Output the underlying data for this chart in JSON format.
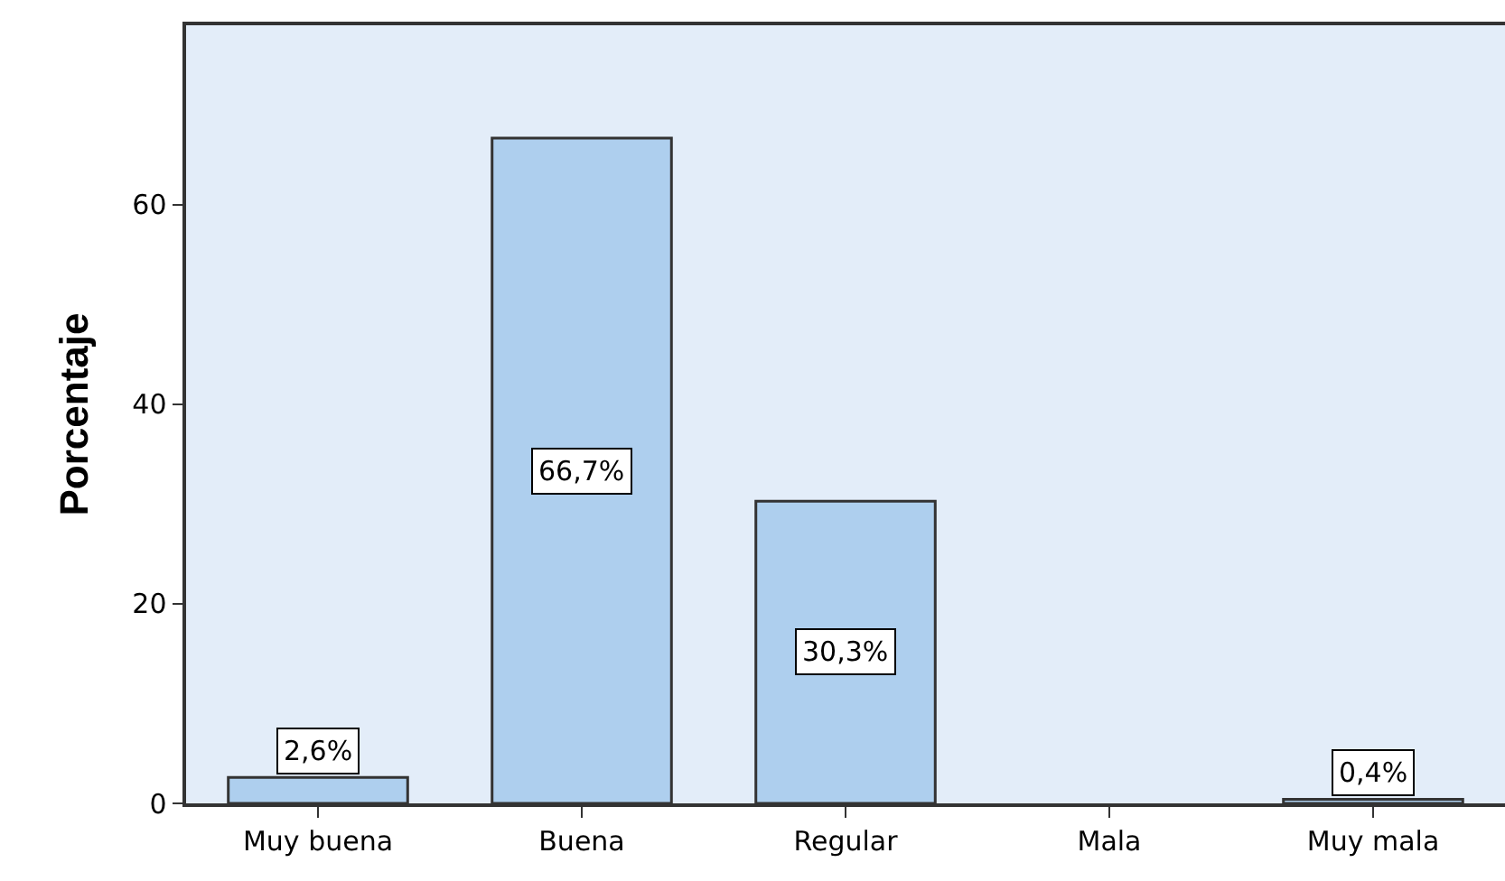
{
  "chart_data": {
    "type": "bar",
    "ylabel": "Porcentaje",
    "categories": [
      "Muy buena",
      "Buena",
      "Regular",
      "Mala",
      "Muy mala"
    ],
    "values": [
      2.6,
      66.7,
      30.3,
      0,
      0.4
    ],
    "value_labels": [
      "2,6%",
      "66,7%",
      "30,3%",
      null,
      "0,4%"
    ],
    "color": "#aecfee",
    "ylim": [
      0,
      78
    ],
    "yticks": [
      0,
      20,
      40,
      60
    ],
    "grid": false
  }
}
